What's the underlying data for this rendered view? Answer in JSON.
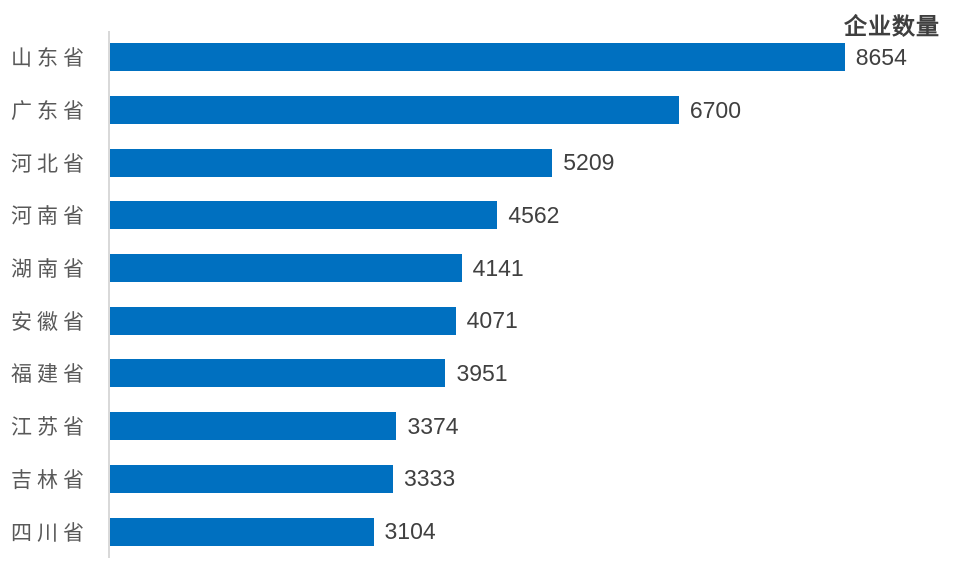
{
  "chart_data": {
    "type": "bar",
    "orientation": "horizontal",
    "title": "企业数量",
    "categories": [
      "山东省",
      "广东省",
      "河北省",
      "河南省",
      "湖南省",
      "安徽省",
      "福建省",
      "江苏省",
      "吉林省",
      "四川省"
    ],
    "values": [
      8654,
      6700,
      5209,
      4562,
      4141,
      4071,
      3951,
      3374,
      3333,
      3104
    ],
    "xlabel": "",
    "ylabel": "",
    "xlim": [
      0,
      10000
    ],
    "grid": false,
    "legend": false,
    "value_labels": "end-of-bar",
    "colors": {
      "bar": "#0070c0",
      "axis_line": "#d9d9d9",
      "category_label": "#595959",
      "value_label": "#404040",
      "title": "#3f3f3f",
      "background": "#ffffff"
    }
  }
}
